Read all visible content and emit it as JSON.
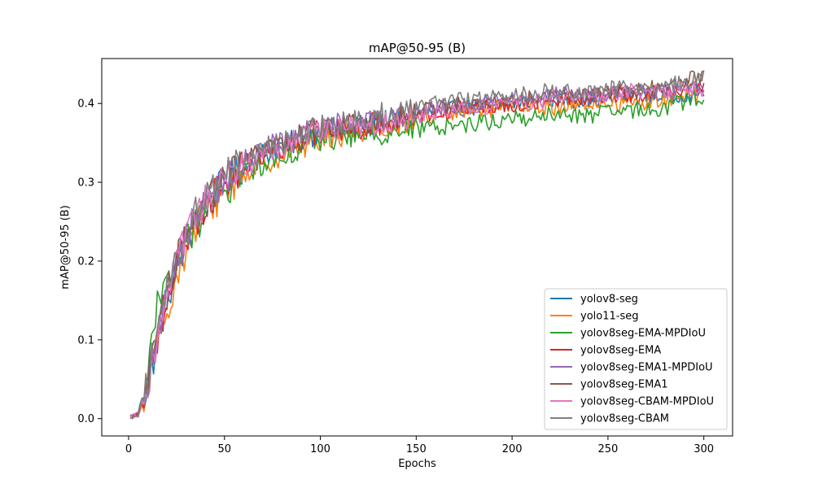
{
  "chart_data": {
    "type": "line",
    "title": "mAP@50-95 (B)",
    "xlabel": "Epochs",
    "ylabel": "mAP@50-95 (B)",
    "xlim": [
      -14,
      315
    ],
    "ylim": [
      -0.022,
      0.457
    ],
    "x_ticks": [
      0,
      50,
      100,
      150,
      200,
      250,
      300
    ],
    "y_ticks": [
      0.0,
      0.1,
      0.2,
      0.3,
      0.4
    ],
    "x_tick_labels": [
      "0",
      "50",
      "100",
      "150",
      "200",
      "250",
      "300"
    ],
    "y_tick_labels": [
      "0.0",
      "0.1",
      "0.2",
      "0.3",
      "0.4"
    ],
    "grid": false,
    "legend_position": "lower-right",
    "x_key_points": [
      1,
      5,
      10,
      15,
      20,
      25,
      30,
      35,
      40,
      45,
      50,
      60,
      70,
      80,
      90,
      100,
      120,
      140,
      160,
      180,
      200,
      220,
      240,
      260,
      280,
      300
    ],
    "series": [
      {
        "name": "yolov8-seg",
        "color": "#1f77b4",
        "values": [
          0.002,
          0.005,
          0.04,
          0.1,
          0.15,
          0.19,
          0.22,
          0.25,
          0.27,
          0.285,
          0.3,
          0.32,
          0.335,
          0.345,
          0.355,
          0.365,
          0.37,
          0.38,
          0.39,
          0.395,
          0.4,
          0.405,
          0.405,
          0.41,
          0.41,
          0.415
        ]
      },
      {
        "name": "yolo11-seg",
        "color": "#ff7f0e",
        "values": [
          0.002,
          0.004,
          0.035,
          0.09,
          0.14,
          0.18,
          0.215,
          0.24,
          0.26,
          0.275,
          0.29,
          0.31,
          0.325,
          0.335,
          0.345,
          0.355,
          0.365,
          0.375,
          0.385,
          0.39,
          0.395,
          0.395,
          0.4,
          0.4,
          0.405,
          0.41
        ]
      },
      {
        "name": "yolov8seg-EMA-MPDIoU",
        "color": "#2ca02c",
        "values": [
          0.002,
          0.008,
          0.06,
          0.14,
          0.17,
          0.2,
          0.225,
          0.245,
          0.26,
          0.275,
          0.29,
          0.31,
          0.325,
          0.335,
          0.345,
          0.355,
          0.36,
          0.365,
          0.37,
          0.375,
          0.38,
          0.385,
          0.385,
          0.39,
          0.395,
          0.41
        ]
      },
      {
        "name": "yolov8seg-EMA",
        "color": "#d62728",
        "values": [
          0.002,
          0.005,
          0.04,
          0.1,
          0.155,
          0.195,
          0.225,
          0.25,
          0.27,
          0.285,
          0.3,
          0.32,
          0.335,
          0.345,
          0.355,
          0.365,
          0.37,
          0.38,
          0.39,
          0.395,
          0.4,
          0.405,
          0.41,
          0.41,
          0.415,
          0.42
        ]
      },
      {
        "name": "yolov8seg-EMA1-MPDIoU",
        "color": "#9467bd",
        "values": [
          0.002,
          0.006,
          0.05,
          0.11,
          0.16,
          0.2,
          0.23,
          0.255,
          0.275,
          0.29,
          0.305,
          0.325,
          0.34,
          0.35,
          0.36,
          0.37,
          0.375,
          0.385,
          0.395,
          0.4,
          0.405,
          0.41,
          0.41,
          0.415,
          0.415,
          0.42
        ]
      },
      {
        "name": "yolov8seg-EMA1",
        "color": "#8c564b",
        "values": [
          0.002,
          0.006,
          0.045,
          0.105,
          0.16,
          0.2,
          0.23,
          0.255,
          0.275,
          0.29,
          0.305,
          0.325,
          0.34,
          0.35,
          0.36,
          0.37,
          0.375,
          0.385,
          0.395,
          0.4,
          0.405,
          0.41,
          0.41,
          0.415,
          0.42,
          0.435
        ]
      },
      {
        "name": "yolov8seg-CBAM-MPDIoU",
        "color": "#e377c2",
        "values": [
          0.002,
          0.005,
          0.045,
          0.1,
          0.155,
          0.195,
          0.23,
          0.255,
          0.275,
          0.29,
          0.305,
          0.32,
          0.335,
          0.345,
          0.355,
          0.365,
          0.37,
          0.38,
          0.39,
          0.395,
          0.4,
          0.405,
          0.41,
          0.415,
          0.415,
          0.42
        ]
      },
      {
        "name": "yolov8seg-CBAM",
        "color": "#7f7f7f",
        "values": [
          0.002,
          0.006,
          0.05,
          0.11,
          0.165,
          0.205,
          0.235,
          0.26,
          0.28,
          0.295,
          0.31,
          0.325,
          0.34,
          0.35,
          0.36,
          0.37,
          0.38,
          0.39,
          0.4,
          0.405,
          0.41,
          0.415,
          0.415,
          0.42,
          0.42,
          0.435
        ]
      }
    ]
  }
}
